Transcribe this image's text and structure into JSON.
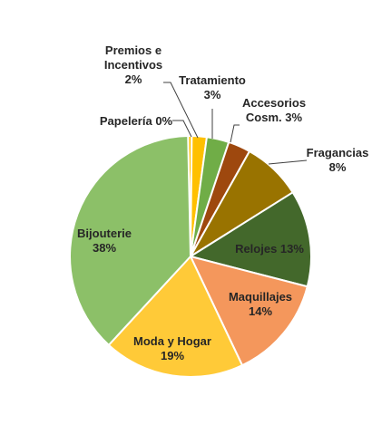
{
  "chart_data": {
    "type": "pie",
    "title": "",
    "slices": [
      {
        "label_lines": [
          "Papelería 0%"
        ],
        "value": 0.5,
        "color": "#FFC000"
      },
      {
        "label_lines": [
          "Premios e",
          "Incentivos",
          "2%"
        ],
        "value": 2,
        "color": "#FFC000"
      },
      {
        "label_lines": [
          "Tratamiento",
          "3%"
        ],
        "value": 3,
        "color": "#70AD47"
      },
      {
        "label_lines": [
          "Accesorios",
          "Cosm. 3%"
        ],
        "value": 3,
        "color": "#9E480E"
      },
      {
        "label_lines": [
          "Fragancias",
          "8%"
        ],
        "value": 8,
        "color": "#997300"
      },
      {
        "label_lines": [
          "Relojes 13%"
        ],
        "value": 13,
        "color": "#43682B"
      },
      {
        "label_lines": [
          "Maquillajes",
          "14%"
        ],
        "value": 14,
        "color": "#F4975C"
      },
      {
        "label_lines": [
          "Moda y Hogar",
          "19%"
        ],
        "value": 19,
        "color": "#FFCA38"
      },
      {
        "label_lines": [
          "Bijouterie",
          "38%"
        ],
        "value": 38,
        "color": "#8CC068"
      }
    ]
  }
}
